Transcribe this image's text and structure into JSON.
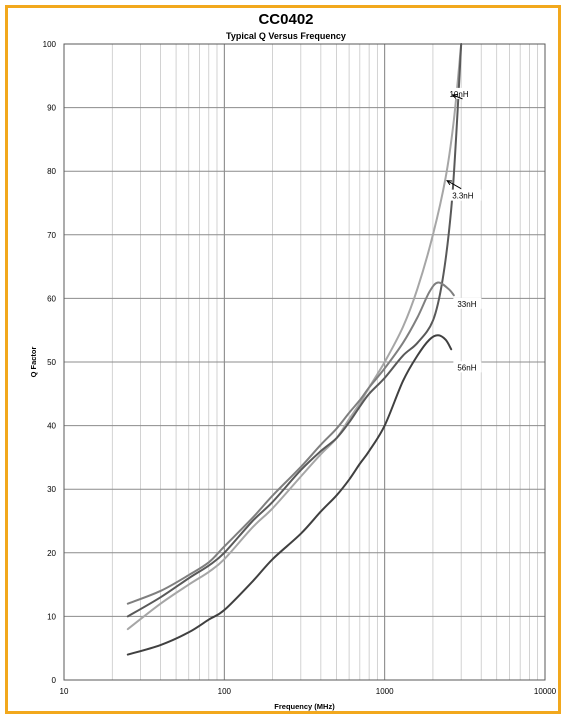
{
  "chart_data": {
    "type": "line",
    "title": "CC0402",
    "subtitle": "Typical Q Versus Frequency",
    "xlabel": "Frequency (MHz)",
    "ylabel": "Q Factor",
    "x_scale": "log",
    "xlim": [
      10,
      10000
    ],
    "ylim": [
      0,
      100
    ],
    "x_ticks": [
      10,
      100,
      1000,
      10000
    ],
    "x_tick_labels": [
      "10",
      "100",
      "1000",
      "10000"
    ],
    "y_ticks": [
      0,
      10,
      20,
      30,
      40,
      50,
      60,
      70,
      80,
      90,
      100
    ],
    "y_tick_labels": [
      "0",
      "10",
      "20",
      "30",
      "40",
      "50",
      "60",
      "70",
      "80",
      "90",
      "100"
    ],
    "grid": true,
    "series": [
      {
        "name": "10nH",
        "color": "#a6a6a6",
        "points": [
          [
            25,
            8
          ],
          [
            40,
            12
          ],
          [
            60,
            15
          ],
          [
            80,
            17
          ],
          [
            100,
            19
          ],
          [
            150,
            24
          ],
          [
            200,
            27
          ],
          [
            300,
            32
          ],
          [
            400,
            35.5
          ],
          [
            500,
            38
          ],
          [
            600,
            41
          ],
          [
            700,
            43.5
          ],
          [
            800,
            46
          ],
          [
            1000,
            50
          ],
          [
            1300,
            55.5
          ],
          [
            1600,
            61.5
          ],
          [
            2000,
            70
          ],
          [
            2400,
            79
          ],
          [
            2700,
            88
          ],
          [
            3000,
            100
          ]
        ]
      },
      {
        "name": "3.3nH",
        "color": "#595959",
        "points": [
          [
            25,
            10
          ],
          [
            40,
            13
          ],
          [
            60,
            16
          ],
          [
            80,
            18
          ],
          [
            100,
            20
          ],
          [
            150,
            25
          ],
          [
            200,
            28
          ],
          [
            300,
            33
          ],
          [
            400,
            36
          ],
          [
            500,
            38
          ],
          [
            600,
            40.5
          ],
          [
            700,
            43
          ],
          [
            800,
            45
          ],
          [
            1000,
            47.5
          ],
          [
            1300,
            51
          ],
          [
            1600,
            53
          ],
          [
            2000,
            56.5
          ],
          [
            2300,
            63
          ],
          [
            2600,
            74
          ],
          [
            2800,
            86
          ],
          [
            3000,
            100
          ]
        ]
      },
      {
        "name": "33nH",
        "color": "#7f7f7f",
        "points": [
          [
            25,
            12
          ],
          [
            40,
            14
          ],
          [
            60,
            16.5
          ],
          [
            80,
            18.5
          ],
          [
            100,
            21
          ],
          [
            150,
            25.5
          ],
          [
            200,
            29
          ],
          [
            300,
            33.5
          ],
          [
            400,
            37
          ],
          [
            500,
            39.5
          ],
          [
            600,
            42
          ],
          [
            700,
            44
          ],
          [
            800,
            46
          ],
          [
            1000,
            49
          ],
          [
            1300,
            53
          ],
          [
            1600,
            57
          ],
          [
            1900,
            61
          ],
          [
            2150,
            62.5
          ],
          [
            2500,
            61.5
          ],
          [
            2700,
            60.5
          ]
        ]
      },
      {
        "name": "56nH",
        "color": "#404040",
        "points": [
          [
            25,
            4
          ],
          [
            40,
            5.5
          ],
          [
            60,
            7.5
          ],
          [
            80,
            9.5
          ],
          [
            100,
            11
          ],
          [
            150,
            15.5
          ],
          [
            200,
            19
          ],
          [
            300,
            23
          ],
          [
            400,
            26.5
          ],
          [
            500,
            29
          ],
          [
            600,
            31.5
          ],
          [
            700,
            34
          ],
          [
            800,
            36
          ],
          [
            1000,
            40
          ],
          [
            1300,
            47
          ],
          [
            1600,
            51
          ],
          [
            1900,
            53.5
          ],
          [
            2150,
            54.2
          ],
          [
            2400,
            53.5
          ],
          [
            2600,
            52
          ]
        ]
      }
    ],
    "annotations": [
      {
        "text": "10nH",
        "x": 2500,
        "y": 92,
        "arrow_to": [
          2650,
          92
        ]
      },
      {
        "text": "3.3nH",
        "x": 2600,
        "y": 76,
        "arrow_to": [
          2450,
          78.5
        ]
      },
      {
        "text": "33nH",
        "x": 2800,
        "y": 59,
        "arrow_to": null
      },
      {
        "text": "56nH",
        "x": 2800,
        "y": 49,
        "arrow_to": null
      }
    ]
  }
}
